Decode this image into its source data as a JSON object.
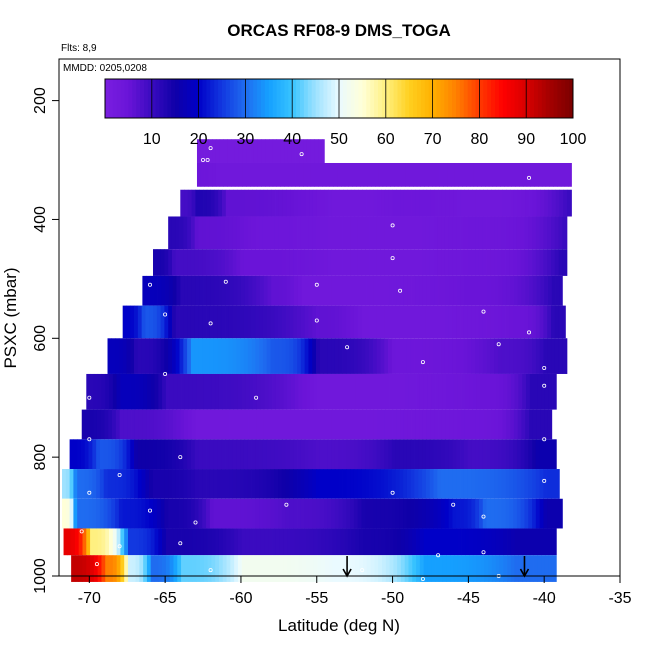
{
  "chart_data": {
    "type": "heatmap",
    "title": "ORCAS RF08-9 DMS_TOGA",
    "flights_note": "Flts: 8,9",
    "dates_note": "MMDD: 0205,0208",
    "xlabel": "Latitude (deg N)",
    "ylabel": "PSXC (mbar)",
    "xlim": [
      -72,
      -35
    ],
    "ylim_reversed": [
      1000,
      130
    ],
    "x_ticks": [
      -70,
      -65,
      -60,
      -55,
      -50,
      -45,
      -40,
      -35
    ],
    "y_ticks": [
      200,
      400,
      600,
      800,
      1000
    ],
    "colorbar": {
      "range": [
        0,
        100
      ],
      "ticks": [
        10,
        20,
        30,
        40,
        50,
        60,
        70,
        80,
        90,
        100
      ],
      "colors": [
        "#7a1fe0",
        "#6a14d8",
        "#3a0bc0",
        "#0f00a8",
        "#0000c8",
        "#1238e0",
        "#1f6cf0",
        "#15a0ff",
        "#38c4ff",
        "#9ee2ff",
        "#eafaff",
        "#ffffd8",
        "#fff080",
        "#ffd020",
        "#ffb000",
        "#ff8000",
        "#ff3a00",
        "#ff0000",
        "#d80000",
        "#a40000",
        "#7a0000"
      ]
    },
    "markers": [
      {
        "latitude": -53.0,
        "label": "down-arrow"
      },
      {
        "latitude": -41.3,
        "label": "down-arrow"
      }
    ],
    "series": [
      {
        "p_top": 265,
        "p_bot": 305,
        "x0": -62.9,
        "x1": -54.5,
        "segments": [
          {
            "x": -62.9,
            "v": 2
          }
        ]
      },
      {
        "p_top": 305,
        "p_bot": 345,
        "x0": -62.9,
        "x1": -38.2,
        "segments": [
          {
            "x": -62.9,
            "v": 4
          },
          {
            "x": -61.5,
            "v": 3
          }
        ]
      },
      {
        "p_top": 350,
        "p_bot": 395,
        "x0": -64.0,
        "x1": -38.2,
        "segments": [
          {
            "x": -64.0,
            "v": 9
          },
          {
            "x": -63.0,
            "v": 13
          },
          {
            "x": -61.0,
            "v": 6
          },
          {
            "x": -54.0,
            "v": 3
          },
          {
            "x": -50.0,
            "v": 4
          },
          {
            "x": -45.0,
            "v": 3
          },
          {
            "x": -38.5,
            "v": 10
          }
        ]
      },
      {
        "p_top": 395,
        "p_bot": 450,
        "x0": -64.8,
        "x1": -38.5,
        "segments": [
          {
            "x": -64.8,
            "v": 12
          },
          {
            "x": -63.0,
            "v": 6
          },
          {
            "x": -59.0,
            "v": 4
          },
          {
            "x": -54.0,
            "v": 3
          },
          {
            "x": -45.0,
            "v": 4
          },
          {
            "x": -38.8,
            "v": 10
          }
        ]
      },
      {
        "p_top": 450,
        "p_bot": 495,
        "x0": -65.8,
        "x1": -38.5,
        "segments": [
          {
            "x": -65.8,
            "v": 14
          },
          {
            "x": -64.5,
            "v": 9
          },
          {
            "x": -60.0,
            "v": 5
          },
          {
            "x": -54.0,
            "v": 3
          },
          {
            "x": -45.0,
            "v": 4
          },
          {
            "x": -39.0,
            "v": 12
          }
        ]
      },
      {
        "p_top": 495,
        "p_bot": 545,
        "x0": -66.5,
        "x1": -38.8,
        "segments": [
          {
            "x": -66.5,
            "v": 18
          },
          {
            "x": -64.0,
            "v": 12
          },
          {
            "x": -58.0,
            "v": 6
          },
          {
            "x": -56.0,
            "v": 3
          },
          {
            "x": -45.0,
            "v": 5
          },
          {
            "x": -39.5,
            "v": 12
          }
        ]
      },
      {
        "p_top": 545,
        "p_bot": 600,
        "x0": -67.8,
        "x1": -38.6,
        "segments": [
          {
            "x": -67.8,
            "v": 20
          },
          {
            "x": -66.5,
            "v": 28
          },
          {
            "x": -64.5,
            "v": 12
          },
          {
            "x": -55.0,
            "v": 6
          },
          {
            "x": -52.0,
            "v": 3
          },
          {
            "x": -42.0,
            "v": 5
          },
          {
            "x": -39.5,
            "v": 12
          }
        ]
      },
      {
        "p_top": 600,
        "p_bot": 660,
        "x0": -68.8,
        "x1": -38.5,
        "segments": [
          {
            "x": -68.8,
            "v": 18
          },
          {
            "x": -67.0,
            "v": 12
          },
          {
            "x": -63.3,
            "v": 34
          },
          {
            "x": -58.0,
            "v": 28
          },
          {
            "x": -55.0,
            "v": 12
          },
          {
            "x": -50.0,
            "v": 4
          },
          {
            "x": -43.0,
            "v": 8
          },
          {
            "x": -40.0,
            "v": 12
          }
        ]
      },
      {
        "p_top": 660,
        "p_bot": 720,
        "x0": -70.2,
        "x1": -39.2,
        "segments": [
          {
            "x": -70.2,
            "v": 12
          },
          {
            "x": -68.0,
            "v": 18
          },
          {
            "x": -65.0,
            "v": 10
          },
          {
            "x": -55.0,
            "v": 3
          },
          {
            "x": -44.0,
            "v": 5
          },
          {
            "x": -41.0,
            "v": 12
          }
        ]
      },
      {
        "p_top": 720,
        "p_bot": 770,
        "x0": -70.5,
        "x1": -39.5,
        "segments": [
          {
            "x": -70.5,
            "v": 14
          },
          {
            "x": -68.0,
            "v": 8
          },
          {
            "x": -63.0,
            "v": 3
          },
          {
            "x": -45.0,
            "v": 4
          },
          {
            "x": -41.0,
            "v": 12
          }
        ]
      },
      {
        "p_top": 770,
        "p_bot": 820,
        "x0": -71.3,
        "x1": -39.2,
        "segments": [
          {
            "x": -71.3,
            "v": 20
          },
          {
            "x": -69.5,
            "v": 28
          },
          {
            "x": -67.0,
            "v": 15
          },
          {
            "x": -63.0,
            "v": 10
          },
          {
            "x": -55.0,
            "v": 8
          },
          {
            "x": -50.0,
            "v": 12
          },
          {
            "x": -45.0,
            "v": 9
          },
          {
            "x": -40.5,
            "v": 16
          }
        ]
      },
      {
        "p_top": 820,
        "p_bot": 870,
        "x0": -71.8,
        "x1": -39.0,
        "segments": [
          {
            "x": -71.8,
            "v": 45
          },
          {
            "x": -71.0,
            "v": 30
          },
          {
            "x": -69.0,
            "v": 24
          },
          {
            "x": -66.0,
            "v": 14
          },
          {
            "x": -63.0,
            "v": 12
          },
          {
            "x": -55.0,
            "v": 20
          },
          {
            "x": -47.0,
            "v": 30
          },
          {
            "x": -40.0,
            "v": 24
          }
        ]
      },
      {
        "p_top": 870,
        "p_bot": 920,
        "x0": -71.8,
        "x1": -38.8,
        "segments": [
          {
            "x": -71.8,
            "v": 55
          },
          {
            "x": -71.0,
            "v": 30
          },
          {
            "x": -68.0,
            "v": 22
          },
          {
            "x": -65.0,
            "v": 14
          },
          {
            "x": -62.0,
            "v": 6
          },
          {
            "x": -57.0,
            "v": 8
          },
          {
            "x": -52.0,
            "v": 14
          },
          {
            "x": -46.0,
            "v": 22
          },
          {
            "x": -44.0,
            "v": 30
          },
          {
            "x": -40.0,
            "v": 16
          }
        ]
      },
      {
        "p_top": 920,
        "p_bot": 965,
        "x0": -71.7,
        "x1": -39.2,
        "segments": [
          {
            "x": -71.7,
            "v": 88
          },
          {
            "x": -70.0,
            "v": 60
          },
          {
            "x": -67.5,
            "v": 25
          },
          {
            "x": -65.0,
            "v": 14
          },
          {
            "x": -60.0,
            "v": 10
          },
          {
            "x": -52.0,
            "v": 14
          },
          {
            "x": -48.0,
            "v": 20
          },
          {
            "x": -42.0,
            "v": 16
          }
        ]
      },
      {
        "p_top": 965,
        "p_bot": 1010,
        "x0": -71.2,
        "x1": -39.2,
        "segments": [
          {
            "x": -71.2,
            "v": 92
          },
          {
            "x": -69.0,
            "v": 75
          },
          {
            "x": -67.5,
            "v": 48
          },
          {
            "x": -66.0,
            "v": 30
          },
          {
            "x": -64.0,
            "v": 42
          },
          {
            "x": -60.0,
            "v": 52
          },
          {
            "x": -54.0,
            "v": 50
          },
          {
            "x": -48.0,
            "v": 35
          },
          {
            "x": -42.0,
            "v": 30
          }
        ]
      }
    ],
    "sample_points": [
      [
        -62,
        280
      ],
      [
        -56,
        290
      ],
      [
        -62.5,
        300
      ],
      [
        -62.2,
        300
      ],
      [
        -50,
        410
      ],
      [
        -41,
        330
      ],
      [
        -50,
        465
      ],
      [
        -49.5,
        520
      ],
      [
        -61,
        505
      ],
      [
        -55,
        510
      ],
      [
        -66,
        510
      ],
      [
        -44,
        555
      ],
      [
        -55,
        570
      ],
      [
        -65,
        560
      ],
      [
        -41,
        590
      ],
      [
        -62,
        575
      ],
      [
        -53,
        615
      ],
      [
        -48,
        640
      ],
      [
        -43,
        610
      ],
      [
        -65,
        660
      ],
      [
        -40,
        650
      ],
      [
        -70,
        700
      ],
      [
        -40,
        680
      ],
      [
        -59,
        700
      ],
      [
        -70,
        770
      ],
      [
        -64,
        800
      ],
      [
        -40,
        770
      ],
      [
        -68,
        830
      ],
      [
        -70,
        860
      ],
      [
        -57,
        880
      ],
      [
        -50,
        860
      ],
      [
        -44,
        900
      ],
      [
        -46,
        880
      ],
      [
        -40,
        840
      ],
      [
        -66,
        890
      ],
      [
        -63,
        910
      ],
      [
        -70.5,
        925
      ],
      [
        -68,
        950
      ],
      [
        -44,
        960
      ],
      [
        -47,
        965
      ],
      [
        -52,
        990
      ],
      [
        -62,
        990
      ],
      [
        -64,
        945
      ],
      [
        -69.5,
        980
      ],
      [
        -43,
        1000
      ],
      [
        -48,
        1005
      ]
    ]
  }
}
